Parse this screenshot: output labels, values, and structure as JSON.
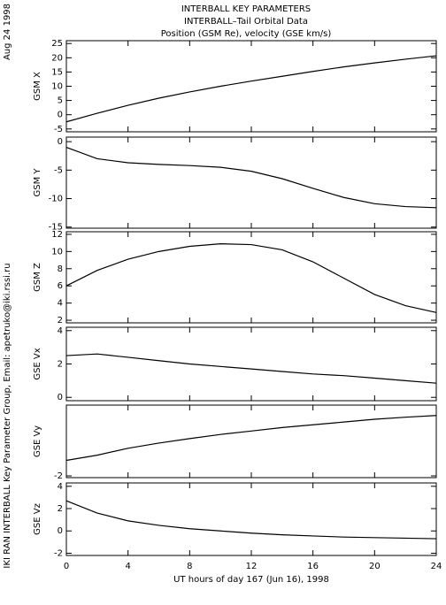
{
  "header": {
    "lines": [
      "INTERBALL KEY PARAMETERS",
      "INTERBALL–Tail Orbital Data",
      "Position (GSM Re), velocity (GSE km/s)"
    ],
    "date": "Aug 24 1998",
    "credit": "IKI RAN INTERBALL Key Parameter Group, Email: apetruko@iki.rssi.ru"
  },
  "chart_data": [
    {
      "type": "line",
      "ylabel": "GSM X",
      "color": "#000000",
      "x": [
        0,
        2,
        4,
        6,
        8,
        10,
        12,
        14,
        16,
        18,
        20,
        22,
        24
      ],
      "xlim": [
        0,
        24
      ],
      "xticks": [
        0,
        4,
        8,
        12,
        16,
        20,
        24
      ],
      "values": [
        -2.5,
        0.5,
        3.3,
        5.8,
        8,
        10,
        11.8,
        13.5,
        15.2,
        16.8,
        18.2,
        19.5,
        20.7
      ],
      "ylim": [
        -6,
        26
      ],
      "yticks": [
        -5,
        0,
        5,
        10,
        15,
        20,
        25
      ]
    },
    {
      "type": "line",
      "ylabel": "GSM Y",
      "color": "#000000",
      "x": [
        0,
        2,
        4,
        6,
        8,
        10,
        12,
        14,
        16,
        18,
        20,
        22,
        24
      ],
      "xlim": [
        0,
        24
      ],
      "xticks": [
        0,
        4,
        8,
        12,
        16,
        20,
        24
      ],
      "values": [
        -1,
        -3,
        -3.7,
        -4,
        -4.2,
        -4.5,
        -5.2,
        -6.5,
        -8.2,
        -9.8,
        -10.9,
        -11.4,
        -11.6
      ],
      "ylim": [
        -15.2,
        0.8
      ],
      "yticks": [
        -15,
        -10,
        -5,
        0
      ]
    },
    {
      "type": "line",
      "ylabel": "GSM Z",
      "color": "#000000",
      "x": [
        0,
        2,
        4,
        6,
        8,
        10,
        12,
        14,
        16,
        18,
        20,
        22,
        24
      ],
      "xlim": [
        0,
        24
      ],
      "xticks": [
        0,
        4,
        8,
        12,
        16,
        20,
        24
      ],
      "values": [
        6,
        7.8,
        9.1,
        10,
        10.6,
        10.9,
        10.8,
        10.2,
        8.8,
        6.9,
        5,
        3.7,
        2.9
      ],
      "ylim": [
        1.7,
        12.3
      ],
      "yticks": [
        2,
        4,
        6,
        8,
        10,
        12
      ]
    },
    {
      "type": "line",
      "ylabel": "GSE Vx",
      "color": "#000000",
      "x": [
        0,
        2,
        4,
        6,
        8,
        10,
        12,
        14,
        16,
        18,
        20,
        22,
        24
      ],
      "xlim": [
        0,
        24
      ],
      "xticks": [
        0,
        4,
        8,
        12,
        16,
        20,
        24
      ],
      "values": [
        2.5,
        2.6,
        2.4,
        2.2,
        2.0,
        1.85,
        1.7,
        1.55,
        1.4,
        1.3,
        1.15,
        1.0,
        0.85
      ],
      "ylim": [
        -0.2,
        4.2
      ],
      "yticks": [
        0,
        2,
        4
      ]
    },
    {
      "type": "line",
      "ylabel": "GSE Vy",
      "color": "#000000",
      "x": [
        0,
        2,
        4,
        6,
        8,
        10,
        12,
        14,
        16,
        18,
        20,
        22,
        24
      ],
      "xlim": [
        0,
        24
      ],
      "xticks": [
        0,
        4,
        8,
        12,
        16,
        20,
        24
      ],
      "values": [
        -1.55,
        -1.4,
        -1.2,
        -1.05,
        -0.92,
        -0.8,
        -0.7,
        -0.6,
        -0.52,
        -0.44,
        -0.36,
        -0.3,
        -0.25
      ],
      "ylim": [
        -2.05,
        0.05
      ],
      "yticks": [
        -2
      ]
    },
    {
      "type": "line",
      "ylabel": "GSE Vz",
      "color": "#000000",
      "x": [
        0,
        2,
        4,
        6,
        8,
        10,
        12,
        14,
        16,
        18,
        20,
        22,
        24
      ],
      "xlim": [
        0,
        24
      ],
      "xticks": [
        0,
        4,
        8,
        12,
        16,
        20,
        24
      ],
      "values": [
        2.7,
        1.6,
        0.9,
        0.5,
        0.2,
        0,
        -0.2,
        -0.35,
        -0.45,
        -0.55,
        -0.6,
        -0.65,
        -0.7
      ],
      "ylim": [
        -2.2,
        4.3
      ],
      "yticks": [
        4,
        2,
        0,
        -2
      ],
      "xlabel": "UT hours of day 167 (Jun 16), 1998"
    }
  ]
}
